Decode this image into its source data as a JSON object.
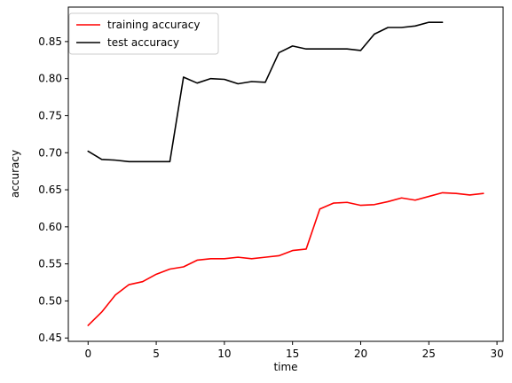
{
  "chart_data": {
    "type": "line",
    "title": "",
    "xlabel": "time",
    "ylabel": "accuracy",
    "xlim": [
      -1.45,
      30.45
    ],
    "ylim": [
      0.4455,
      0.8965
    ],
    "xticks": [
      0,
      5,
      10,
      15,
      20,
      25,
      30
    ],
    "xtick_labels": [
      "0",
      "5",
      "10",
      "15",
      "20",
      "25",
      "30"
    ],
    "yticks": [
      0.45,
      0.5,
      0.55,
      0.6,
      0.65,
      0.7,
      0.75,
      0.8,
      0.85
    ],
    "ytick_labels": [
      "0.45",
      "0.50",
      "0.55",
      "0.60",
      "0.65",
      "0.70",
      "0.75",
      "0.80",
      "0.85"
    ],
    "grid": false,
    "legend_position": "top-left",
    "series": [
      {
        "name": "training accuracy",
        "color": "#ff0000",
        "x": [
          0,
          1,
          2,
          3,
          4,
          5,
          6,
          7,
          8,
          9,
          10,
          11,
          12,
          13,
          14,
          15,
          16,
          17,
          18,
          19,
          20,
          21,
          22,
          23,
          24,
          25,
          26,
          27,
          28,
          29
        ],
        "values": [
          0.467,
          0.485,
          0.508,
          0.522,
          0.526,
          0.536,
          0.543,
          0.546,
          0.555,
          0.557,
          0.557,
          0.559,
          0.557,
          0.559,
          0.561,
          0.568,
          0.57,
          0.624,
          0.632,
          0.633,
          0.629,
          0.63,
          0.634,
          0.639,
          0.636,
          0.641,
          0.646,
          0.645,
          0.643,
          0.645
        ]
      },
      {
        "name": "test accuracy",
        "color": "#000000",
        "x": [
          0,
          1,
          2,
          3,
          4,
          5,
          6,
          7,
          8,
          9,
          10,
          11,
          12,
          13,
          14,
          15,
          16,
          17,
          18,
          19,
          20,
          21,
          22,
          23,
          24,
          25,
          26
        ],
        "values": [
          0.702,
          0.691,
          0.69,
          0.688,
          0.688,
          0.688,
          0.688,
          0.802,
          0.794,
          0.8,
          0.799,
          0.793,
          0.796,
          0.795,
          0.835,
          0.844,
          0.84,
          0.84,
          0.84,
          0.84,
          0.838,
          0.86,
          0.869,
          0.869,
          0.871,
          0.876,
          0.876
        ]
      }
    ]
  }
}
